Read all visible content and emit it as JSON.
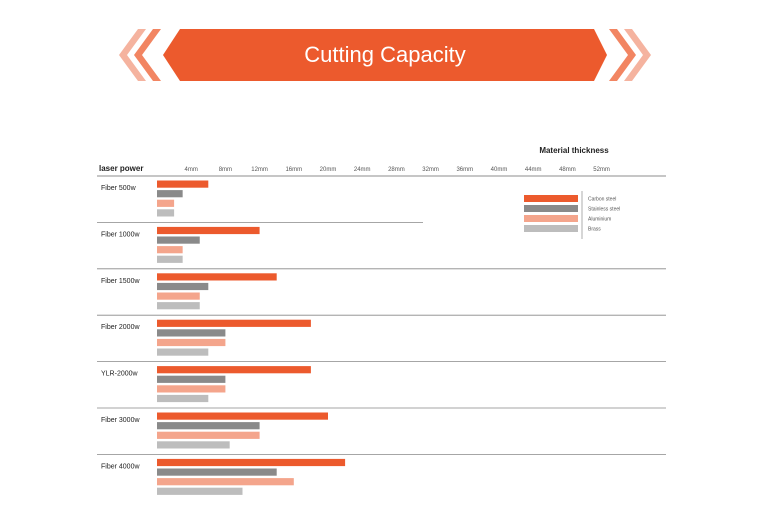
{
  "banner": {
    "title": "Cutting Capacity",
    "color": "#ec5a2d",
    "chevron_color": "#f5b39f"
  },
  "chart_data": {
    "type": "bar",
    "orientation": "horizontal",
    "title": "",
    "xlabel": "Material thickness",
    "ylabel": "laser power",
    "x_ticks": [
      "4mm",
      "8mm",
      "12mm",
      "16mm",
      "20mm",
      "24mm",
      "28mm",
      "32mm",
      "36mm",
      "40mm",
      "44mm",
      "48mm",
      "52mm"
    ],
    "xlim": [
      0,
      52
    ],
    "grid": false,
    "legend_position": "right",
    "categories": [
      "Fiber 500w",
      "Fiber 1000w",
      "Fiber 1500w",
      "Fiber 2000w",
      "YLR-2000w",
      "Fiber 3000w",
      "Fiber 4000w"
    ],
    "series": [
      {
        "name": "Carbon steel",
        "color": "#ec5a2d",
        "values": [
          6,
          12,
          14,
          18,
          18,
          20,
          22
        ]
      },
      {
        "name": "Stainless steel",
        "color": "#8a8a8a",
        "values": [
          3,
          5,
          6,
          8,
          8,
          12,
          14
        ]
      },
      {
        "name": "Aluminium",
        "color": "#f4a58c",
        "values": [
          2,
          3,
          5,
          8,
          8,
          12,
          16
        ]
      },
      {
        "name": "Brass",
        "color": "#bdbdbd",
        "values": [
          2,
          3,
          5,
          6,
          6,
          8.5,
          10
        ]
      }
    ]
  }
}
